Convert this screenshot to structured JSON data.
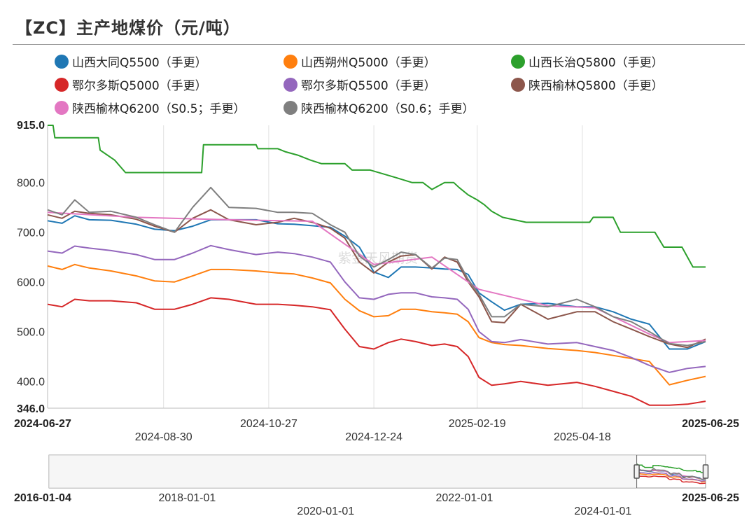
{
  "title": "【ZC】主产地煤价（元/吨）",
  "watermark": "紫金天风期货",
  "chart_data": {
    "type": "line",
    "ylim": [
      346.0,
      915.0
    ],
    "yticks": [
      400.0,
      500.0,
      600.0,
      700.0,
      800.0
    ],
    "ytick_labels": [
      "400.0",
      "500.0",
      "600.0",
      "700.0",
      "800.0"
    ],
    "ymin_label": "346.0",
    "ymax_label": "915.0",
    "x_range": [
      "2024-06-27",
      "2025-06-25"
    ],
    "x_start_label": "2024-06-27",
    "x_end_label": "2025-06-25",
    "xticks": [
      {
        "date": "2024-08-30",
        "label": "2024-08-30",
        "row": 2
      },
      {
        "date": "2024-10-27",
        "label": "2024-10-27",
        "row": 1
      },
      {
        "date": "2024-12-24",
        "label": "2024-12-24",
        "row": 2
      },
      {
        "date": "2025-02-19",
        "label": "2025-02-19",
        "row": 1
      },
      {
        "date": "2025-04-18",
        "label": "2025-04-18",
        "row": 2
      }
    ],
    "grid": "vertical",
    "legend_position": "top",
    "series": [
      {
        "name": "山西大同Q5500（手更）",
        "color": "#1f77b4",
        "x": [
          "2024-06-27",
          "2024-07-05",
          "2024-07-12",
          "2024-07-20",
          "2024-08-01",
          "2024-08-15",
          "2024-08-25",
          "2024-09-05",
          "2024-09-15",
          "2024-09-25",
          "2024-10-05",
          "2024-10-20",
          "2024-11-01",
          "2024-11-10",
          "2024-11-20",
          "2024-11-30",
          "2024-12-08",
          "2024-12-16",
          "2024-12-24",
          "2025-01-01",
          "2025-01-08",
          "2025-01-16",
          "2025-01-25",
          "2025-02-01",
          "2025-02-08",
          "2025-02-14",
          "2025-02-20",
          "2025-02-27",
          "2025-03-06",
          "2025-03-15",
          "2025-03-30",
          "2025-04-15",
          "2025-04-25",
          "2025-05-05",
          "2025-05-15",
          "2025-05-25",
          "2025-06-05",
          "2025-06-15",
          "2025-06-25"
        ],
        "y": [
          723,
          718,
          733,
          725,
          724,
          716,
          706,
          703,
          712,
          725,
          725,
          725,
          717,
          716,
          713,
          710,
          692,
          670,
          620,
          609,
          630,
          630,
          628,
          626,
          625,
          615,
          578,
          560,
          543,
          555,
          557,
          550,
          550,
          540,
          525,
          515,
          465,
          465,
          480
        ]
      },
      {
        "name": "山西朔州Q5000（手更）",
        "color": "#ff7f0e",
        "x": [
          "2024-06-27",
          "2024-07-05",
          "2024-07-12",
          "2024-07-20",
          "2024-08-01",
          "2024-08-15",
          "2024-08-25",
          "2024-09-05",
          "2024-09-15",
          "2024-09-25",
          "2024-10-05",
          "2024-10-20",
          "2024-11-01",
          "2024-11-10",
          "2024-11-20",
          "2024-11-30",
          "2024-12-08",
          "2024-12-16",
          "2024-12-24",
          "2025-01-01",
          "2025-01-08",
          "2025-01-16",
          "2025-01-25",
          "2025-02-01",
          "2025-02-08",
          "2025-02-14",
          "2025-02-20",
          "2025-02-27",
          "2025-03-06",
          "2025-03-15",
          "2025-03-30",
          "2025-04-15",
          "2025-04-25",
          "2025-05-05",
          "2025-05-15",
          "2025-05-25",
          "2025-06-05",
          "2025-06-15",
          "2025-06-25"
        ],
        "y": [
          632,
          625,
          635,
          628,
          622,
          612,
          602,
          600,
          612,
          625,
          625,
          622,
          618,
          616,
          608,
          598,
          565,
          542,
          530,
          532,
          545,
          545,
          540,
          538,
          535,
          520,
          488,
          478,
          474,
          472,
          466,
          462,
          458,
          452,
          446,
          440,
          393,
          402,
          410
        ]
      },
      {
        "name": "山西长治Q5800（手更）",
        "color": "#2ca02c",
        "x": [
          "2024-06-27",
          "2024-06-30",
          "2024-07-01",
          "2024-07-25",
          "2024-07-26",
          "2024-08-03",
          "2024-08-09",
          "2024-09-20",
          "2024-09-21",
          "2024-10-20",
          "2024-10-21",
          "2024-11-01",
          "2024-11-05",
          "2024-11-12",
          "2024-11-19",
          "2024-11-25",
          "2024-12-08",
          "2024-12-12",
          "2024-12-22",
          "2025-01-05",
          "2025-01-14",
          "2025-01-20",
          "2025-01-25",
          "2025-02-01",
          "2025-02-06",
          "2025-02-09",
          "2025-02-14",
          "2025-02-19",
          "2025-02-23",
          "2025-02-27",
          "2025-03-05",
          "2025-03-18",
          "2025-04-22",
          "2025-04-24",
          "2025-05-05",
          "2025-05-09",
          "2025-05-28",
          "2025-06-02",
          "2025-06-12",
          "2025-06-18",
          "2025-06-25"
        ],
        "y": [
          915,
          915,
          890,
          890,
          865,
          845,
          820,
          820,
          876,
          876,
          868,
          868,
          862,
          855,
          845,
          838,
          838,
          825,
          825,
          810,
          800,
          800,
          786,
          800,
          800,
          790,
          775,
          765,
          755,
          742,
          730,
          720,
          720,
          730,
          730,
          700,
          700,
          670,
          670,
          630,
          630
        ]
      },
      {
        "name": "鄂尔多斯Q5000（手更）",
        "color": "#d62728",
        "x": [
          "2024-06-27",
          "2024-07-05",
          "2024-07-12",
          "2024-07-20",
          "2024-08-01",
          "2024-08-15",
          "2024-08-25",
          "2024-09-05",
          "2024-09-15",
          "2024-09-25",
          "2024-10-05",
          "2024-10-20",
          "2024-11-01",
          "2024-11-10",
          "2024-11-20",
          "2024-11-30",
          "2024-12-08",
          "2024-12-16",
          "2024-12-24",
          "2025-01-01",
          "2025-01-08",
          "2025-01-16",
          "2025-01-25",
          "2025-02-01",
          "2025-02-08",
          "2025-02-14",
          "2025-02-20",
          "2025-02-27",
          "2025-03-06",
          "2025-03-15",
          "2025-03-30",
          "2025-04-15",
          "2025-04-25",
          "2025-05-05",
          "2025-05-15",
          "2025-05-25",
          "2025-06-05",
          "2025-06-15",
          "2025-06-25"
        ],
        "y": [
          555,
          550,
          565,
          562,
          562,
          558,
          545,
          545,
          555,
          568,
          565,
          555,
          555,
          553,
          550,
          544,
          505,
          470,
          465,
          478,
          485,
          480,
          472,
          475,
          470,
          450,
          408,
          392,
          395,
          400,
          392,
          398,
          390,
          380,
          370,
          352,
          352,
          354,
          360
        ]
      },
      {
        "name": "鄂尔多斯Q5500（手更）",
        "color": "#9467bd",
        "x": [
          "2024-06-27",
          "2024-07-05",
          "2024-07-12",
          "2024-07-20",
          "2024-08-01",
          "2024-08-15",
          "2024-08-25",
          "2024-09-05",
          "2024-09-15",
          "2024-09-25",
          "2024-10-05",
          "2024-10-20",
          "2024-11-01",
          "2024-11-10",
          "2024-11-20",
          "2024-11-30",
          "2024-12-08",
          "2024-12-16",
          "2024-12-24",
          "2025-01-01",
          "2025-01-08",
          "2025-01-16",
          "2025-01-25",
          "2025-02-01",
          "2025-02-08",
          "2025-02-14",
          "2025-02-20",
          "2025-02-27",
          "2025-03-06",
          "2025-03-15",
          "2025-03-30",
          "2025-04-15",
          "2025-04-25",
          "2025-05-05",
          "2025-05-15",
          "2025-05-25",
          "2025-06-05",
          "2025-06-15",
          "2025-06-25"
        ],
        "y": [
          662,
          658,
          672,
          668,
          663,
          655,
          645,
          645,
          658,
          673,
          665,
          655,
          660,
          657,
          650,
          640,
          600,
          568,
          565,
          575,
          578,
          578,
          570,
          568,
          565,
          545,
          500,
          480,
          478,
          484,
          475,
          478,
          470,
          462,
          448,
          432,
          418,
          426,
          430
        ]
      },
      {
        "name": "陕西榆林Q5800（手更）",
        "color": "#8c564b",
        "x": [
          "2024-06-27",
          "2024-07-05",
          "2024-07-12",
          "2024-07-20",
          "2024-08-01",
          "2024-08-15",
          "2024-08-25",
          "2024-09-05",
          "2024-09-15",
          "2024-09-25",
          "2024-10-05",
          "2024-10-20",
          "2024-11-01",
          "2024-11-10",
          "2024-11-20",
          "2024-11-30",
          "2024-12-08",
          "2024-12-16",
          "2024-12-24",
          "2025-01-01",
          "2025-01-08",
          "2025-01-16",
          "2025-01-25",
          "2025-02-01",
          "2025-02-08",
          "2025-02-14",
          "2025-02-20",
          "2025-02-27",
          "2025-03-06",
          "2025-03-15",
          "2025-03-30",
          "2025-04-15",
          "2025-04-25",
          "2025-05-05",
          "2025-05-15",
          "2025-05-25",
          "2025-06-05",
          "2025-06-15",
          "2025-06-25"
        ],
        "y": [
          735,
          728,
          742,
          738,
          735,
          726,
          712,
          700,
          728,
          745,
          725,
          715,
          720,
          728,
          720,
          708,
          688,
          640,
          618,
          640,
          652,
          655,
          626,
          650,
          640,
          600,
          570,
          520,
          518,
          555,
          525,
          540,
          540,
          520,
          505,
          490,
          475,
          468,
          485
        ]
      },
      {
        "name": "陕西榆林Q6200（S0.5；手更）",
        "color": "#e377c2",
        "x": [
          "2024-06-27",
          "2024-08-15",
          "2024-10-05",
          "2024-11-20",
          "2024-12-24",
          "2025-01-25",
          "2025-02-20",
          "2025-03-30",
          "2025-04-25",
          "2025-05-25",
          "2025-06-05",
          "2025-06-25"
        ],
        "y": [
          740,
          730,
          725,
          722,
          635,
          650,
          585,
          552,
          548,
          495,
          478,
          482
        ]
      },
      {
        "name": "陕西榆林Q6200（S0.6；手更）",
        "color": "#7f7f7f",
        "x": [
          "2024-06-27",
          "2024-07-05",
          "2024-07-12",
          "2024-07-20",
          "2024-08-01",
          "2024-08-15",
          "2024-08-25",
          "2024-09-05",
          "2024-09-15",
          "2024-09-25",
          "2024-10-05",
          "2024-10-20",
          "2024-11-01",
          "2024-11-10",
          "2024-11-20",
          "2024-11-30",
          "2024-12-08",
          "2024-12-16",
          "2024-12-24",
          "2025-01-01",
          "2025-01-08",
          "2025-01-16",
          "2025-01-25",
          "2025-02-01",
          "2025-02-08",
          "2025-02-14",
          "2025-02-20",
          "2025-02-27",
          "2025-03-06",
          "2025-03-15",
          "2025-03-30",
          "2025-04-15",
          "2025-04-25",
          "2025-05-05",
          "2025-05-15",
          "2025-05-25",
          "2025-06-05",
          "2025-06-15",
          "2025-06-25"
        ],
        "y": [
          745,
          735,
          765,
          740,
          742,
          730,
          715,
          700,
          750,
          790,
          750,
          748,
          740,
          740,
          738,
          715,
          700,
          652,
          630,
          645,
          660,
          655,
          628,
          648,
          645,
          605,
          575,
          530,
          530,
          555,
          550,
          565,
          550,
          530,
          520,
          500,
          476,
          472,
          480
        ]
      }
    ],
    "navigator": {
      "x_range": [
        "2016-01-04",
        "2025-06-25"
      ],
      "ticks": [
        {
          "date": "2016-01-04",
          "label": "2016-01-04",
          "row": 1
        },
        {
          "date": "2018-01-01",
          "label": "2018-01-01",
          "row": 1
        },
        {
          "date": "2020-01-01",
          "label": "2020-01-01",
          "row": 2
        },
        {
          "date": "2022-01-01",
          "label": "2022-01-01",
          "row": 1
        },
        {
          "date": "2024-01-01",
          "label": "2024-01-01",
          "row": 2
        },
        {
          "date": "2025-06-25",
          "label": "2025-06-25",
          "row": 1
        }
      ],
      "selection": [
        "2024-06-27",
        "2025-06-25"
      ]
    }
  }
}
